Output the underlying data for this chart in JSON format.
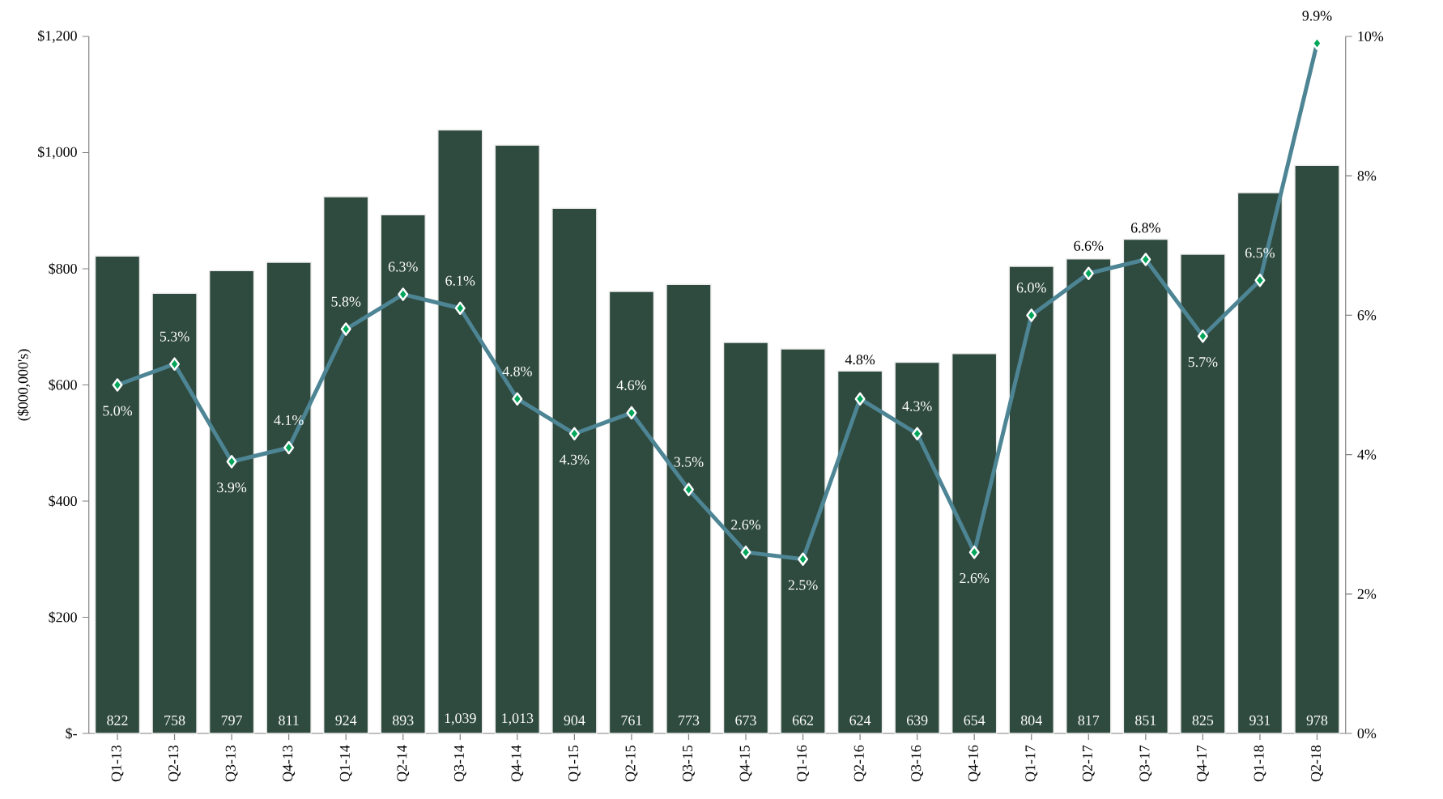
{
  "chart_data": {
    "type": "bar",
    "ylabel": "($000,000's)",
    "categories": [
      "Q1-13",
      "Q2-13",
      "Q3-13",
      "Q4-13",
      "Q1-14",
      "Q2-14",
      "Q3-14",
      "Q4-14",
      "Q1-15",
      "Q2-15",
      "Q3-15",
      "Q4-15",
      "Q1-16",
      "Q2-16",
      "Q3-16",
      "Q4-16",
      "Q1-17",
      "Q2-17",
      "Q3-17",
      "Q4-17",
      "Q1-18",
      "Q2-18"
    ],
    "ylim": [
      0,
      1200
    ],
    "yticks": [
      {
        "value": 0,
        "label": "$-"
      },
      {
        "value": 200,
        "label": "$200"
      },
      {
        "value": 400,
        "label": "$400"
      },
      {
        "value": 600,
        "label": "$600"
      },
      {
        "value": 800,
        "label": "$800"
      },
      {
        "value": 1000,
        "label": "$1,000"
      },
      {
        "value": 1200,
        "label": "$1,200"
      }
    ],
    "y2lim": [
      0,
      10
    ],
    "y2ticks": [
      {
        "value": 0,
        "label": "0%"
      },
      {
        "value": 2,
        "label": "2%"
      },
      {
        "value": 4,
        "label": "4%"
      },
      {
        "value": 6,
        "label": "6%"
      },
      {
        "value": 8,
        "label": "8%"
      },
      {
        "value": 10,
        "label": "10%"
      }
    ],
    "series": [
      {
        "color": "#2f4a3e",
        "values": [
          822,
          758,
          797,
          811,
          924,
          893,
          1039,
          1013,
          904,
          761,
          773,
          673,
          662,
          624,
          639,
          654,
          804,
          817,
          851,
          825,
          931,
          978
        ],
        "value_labels": [
          "822",
          "758",
          "797",
          "811",
          "924",
          "893",
          "1,039",
          "1,013",
          "904",
          "761",
          "773",
          "673",
          "662",
          "624",
          "639",
          "654",
          "804",
          "817",
          "851",
          "825",
          "931",
          "978"
        ]
      },
      {
        "type": "line",
        "axis": "y2",
        "color": "#4d8594",
        "marker": "diamond",
        "values": [
          5.0,
          5.3,
          3.9,
          4.1,
          5.8,
          6.3,
          6.1,
          4.8,
          4.3,
          4.6,
          3.5,
          2.6,
          2.5,
          4.8,
          4.3,
          2.6,
          6.0,
          6.6,
          6.8,
          5.7,
          6.5,
          9.9
        ],
        "value_labels": [
          "5.0%",
          "5.3%",
          "3.9%",
          "4.1%",
          "5.8%",
          "6.3%",
          "6.1%",
          "4.8%",
          "4.3%",
          "4.6%",
          "3.5%",
          "2.6%",
          "2.5%",
          "4.8%",
          "4.3%",
          "2.6%",
          "6.0%",
          "6.6%",
          "6.8%",
          "5.7%",
          "6.5%",
          "9.9%"
        ]
      }
    ]
  }
}
